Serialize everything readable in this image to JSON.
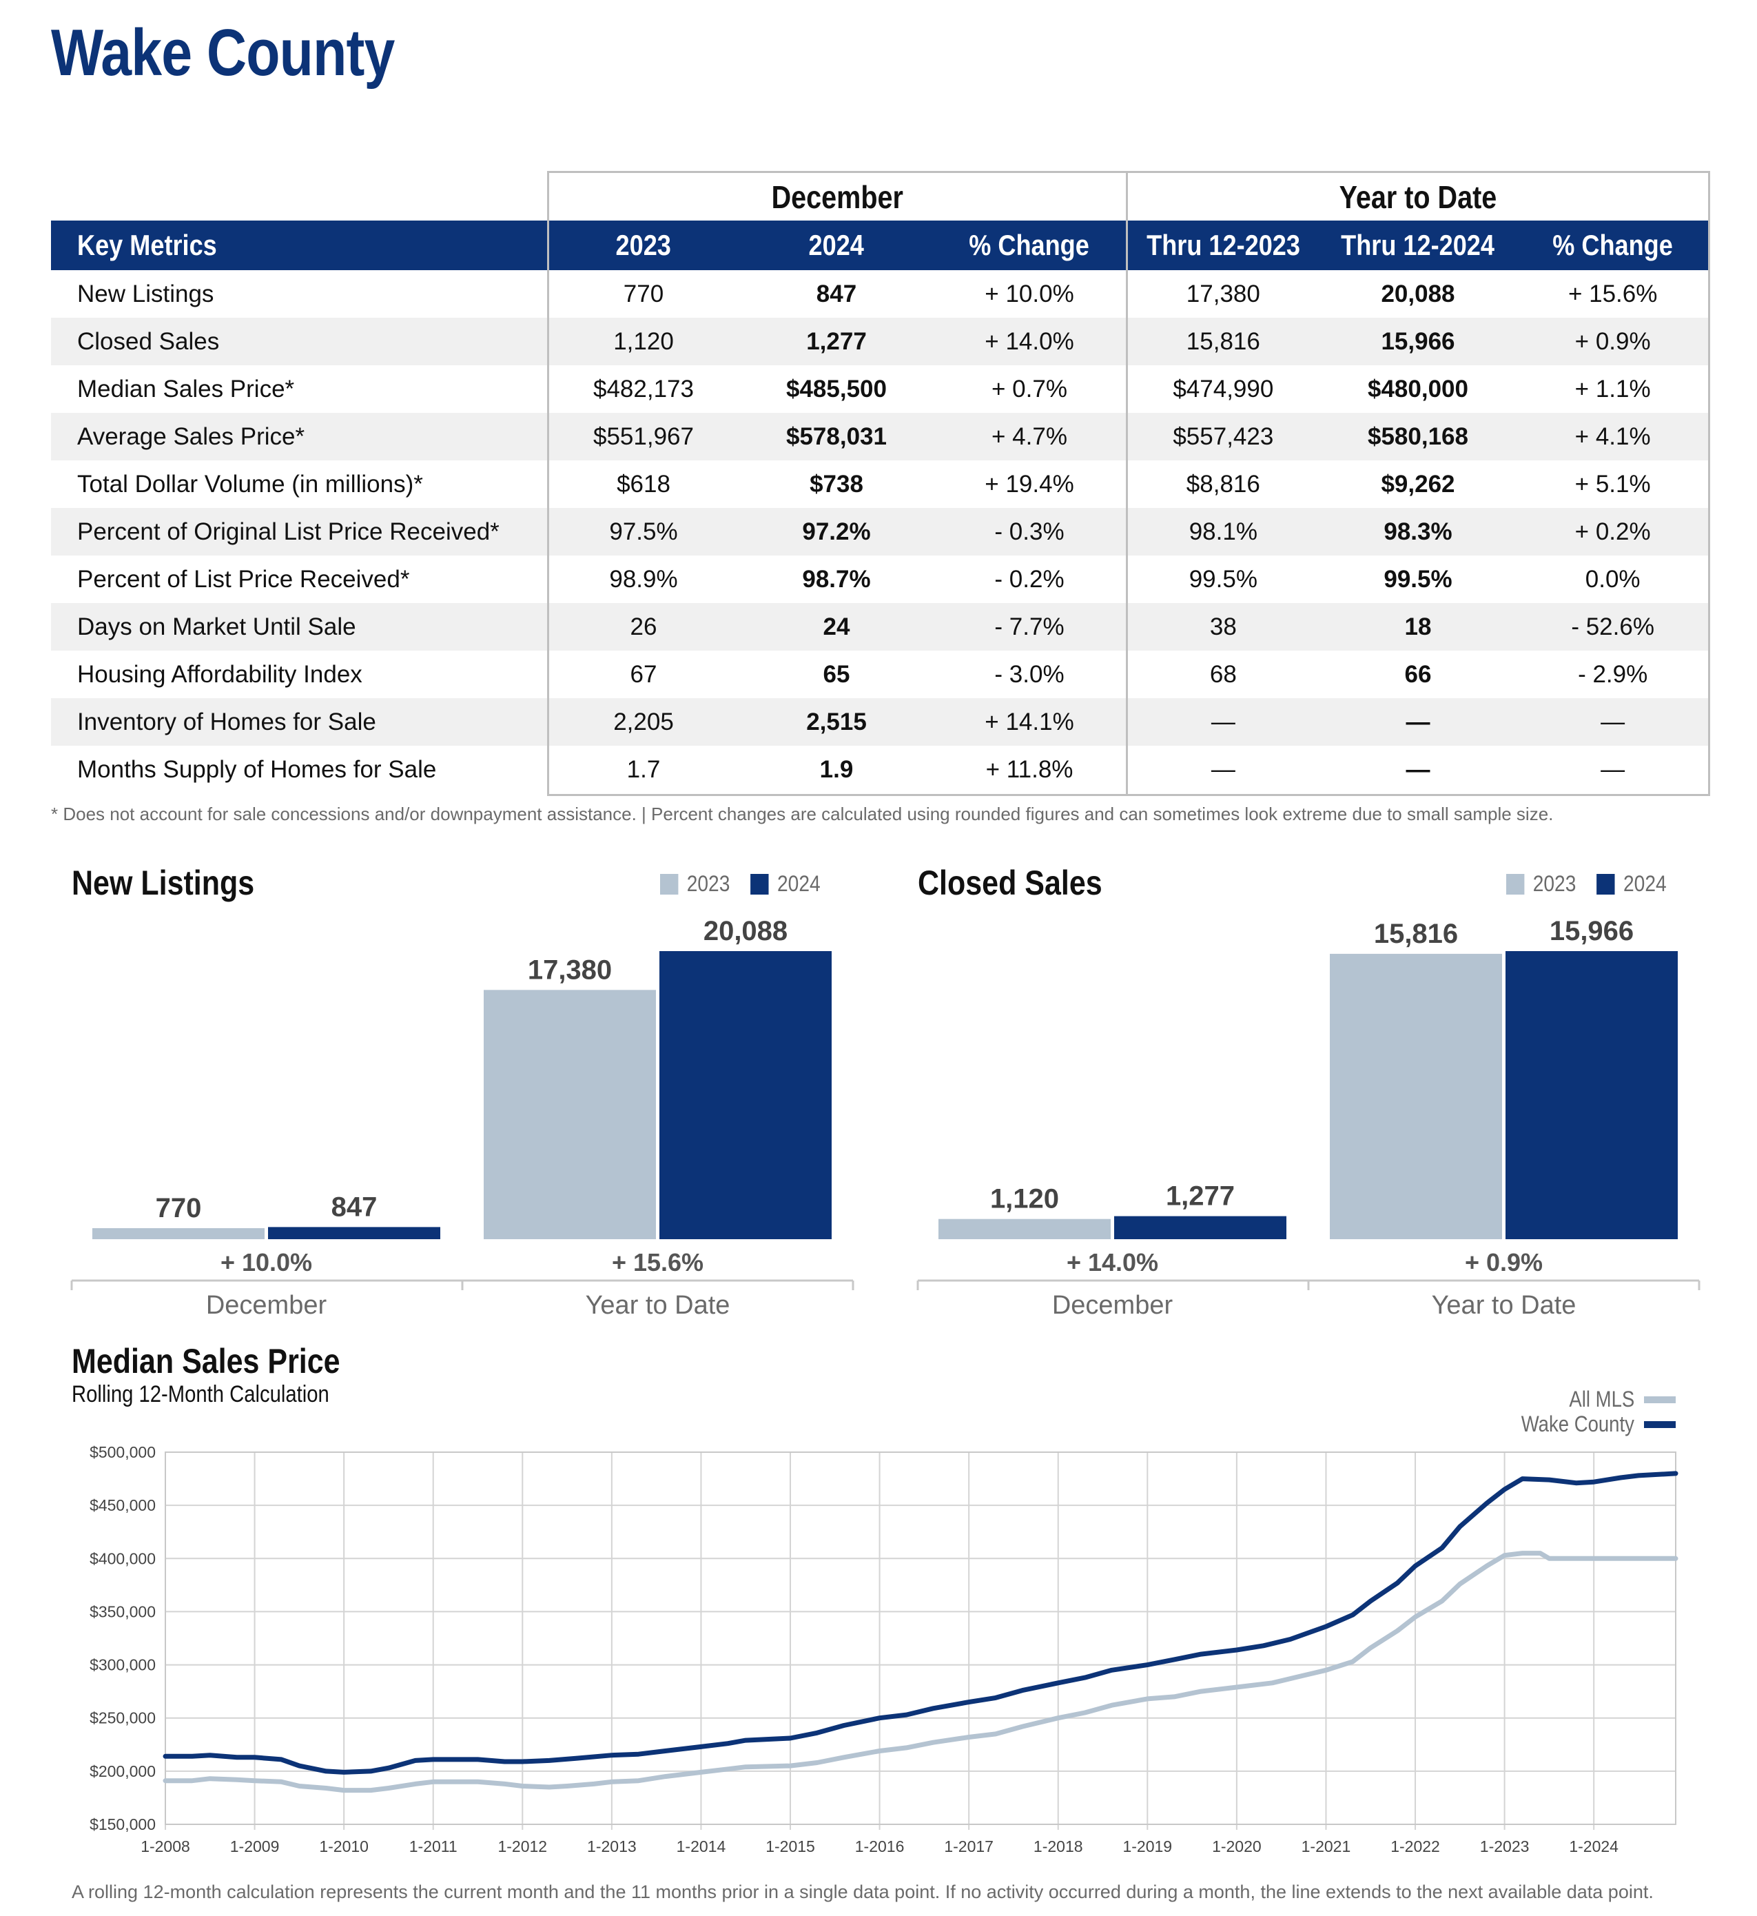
{
  "page_title": "Wake County",
  "metrics_table": {
    "group_headers": [
      "December",
      "Year to Date"
    ],
    "columns": [
      "Key Metrics",
      "2023",
      "2024",
      "% Change",
      "Thru 12-2023",
      "Thru 12-2024",
      "% Change"
    ],
    "rows": [
      [
        "New Listings",
        "770",
        "847",
        "+ 10.0%",
        "17,380",
        "20,088",
        "+ 15.6%"
      ],
      [
        "Closed Sales",
        "1,120",
        "1,277",
        "+ 14.0%",
        "15,816",
        "15,966",
        "+ 0.9%"
      ],
      [
        "Median Sales Price*",
        "$482,173",
        "$485,500",
        "+ 0.7%",
        "$474,990",
        "$480,000",
        "+ 1.1%"
      ],
      [
        "Average Sales Price*",
        "$551,967",
        "$578,031",
        "+ 4.7%",
        "$557,423",
        "$580,168",
        "+ 4.1%"
      ],
      [
        "Total Dollar Volume (in millions)*",
        "$618",
        "$738",
        "+ 19.4%",
        "$8,816",
        "$9,262",
        "+ 5.1%"
      ],
      [
        "Percent of Original List Price Received*",
        "97.5%",
        "97.2%",
        "- 0.3%",
        "98.1%",
        "98.3%",
        "+ 0.2%"
      ],
      [
        "Percent of List Price Received*",
        "98.9%",
        "98.7%",
        "- 0.2%",
        "99.5%",
        "99.5%",
        "0.0%"
      ],
      [
        "Days on Market Until Sale",
        "26",
        "24",
        "- 7.7%",
        "38",
        "18",
        "- 52.6%"
      ],
      [
        "Housing Affordability Index",
        "67",
        "65",
        "- 3.0%",
        "68",
        "66",
        "- 2.9%"
      ],
      [
        "Inventory of Homes for Sale",
        "2,205",
        "2,515",
        "+ 14.1%",
        "—",
        "—",
        "—"
      ],
      [
        "Months Supply of Homes for Sale",
        "1.7",
        "1.9",
        "+ 11.8%",
        "—",
        "—",
        "—"
      ]
    ]
  },
  "footnote": "* Does not account for sale concessions and/or downpayment assistance. | Percent changes are calculated using rounded figures and can sometimes look extreme due to small sample size.",
  "colors": {
    "navy": "#0c3377",
    "gray": "#b4c3d1",
    "axis": "#c8c8c8"
  },
  "chart_data": [
    {
      "type": "bar",
      "title": "New Listings",
      "legend": [
        "2023",
        "2024"
      ],
      "ymax": 20088,
      "groups": [
        {
          "label": "December",
          "values": [
            770,
            847
          ],
          "value_labels": [
            "770",
            "847"
          ],
          "change": "+ 10.0%"
        },
        {
          "label": "Year to Date",
          "values": [
            17380,
            20088
          ],
          "value_labels": [
            "17,380",
            "20,088"
          ],
          "change": "+ 15.6%"
        }
      ]
    },
    {
      "type": "bar",
      "title": "Closed Sales",
      "legend": [
        "2023",
        "2024"
      ],
      "ymax": 15966,
      "groups": [
        {
          "label": "December",
          "values": [
            1120,
            1277
          ],
          "value_labels": [
            "1,120",
            "1,277"
          ],
          "change": "+ 14.0%"
        },
        {
          "label": "Year to Date",
          "values": [
            15816,
            15966
          ],
          "value_labels": [
            "15,816",
            "15,966"
          ],
          "change": "+ 0.9%"
        }
      ]
    },
    {
      "type": "line",
      "title": "Median Sales Price",
      "subtitle": "Rolling 12-Month Calculation",
      "ylim": [
        150000,
        500000
      ],
      "yticks": [
        150000,
        200000,
        250000,
        300000,
        350000,
        400000,
        450000,
        500000
      ],
      "ytick_labels": [
        "$150,000",
        "$200,000",
        "$250,000",
        "$300,000",
        "$350,000",
        "$400,000",
        "$450,000",
        "$500,000"
      ],
      "xlim": [
        2008.0,
        2024.917
      ],
      "xticks": [
        2008,
        2009,
        2010,
        2011,
        2012,
        2013,
        2014,
        2015,
        2016,
        2017,
        2018,
        2019,
        2020,
        2021,
        2022,
        2023,
        2024
      ],
      "xtick_labels": [
        "1-2008",
        "1-2009",
        "1-2010",
        "1-2011",
        "1-2012",
        "1-2013",
        "1-2014",
        "1-2015",
        "1-2016",
        "1-2017",
        "1-2018",
        "1-2019",
        "1-2020",
        "1-2021",
        "1-2022",
        "1-2023",
        "1-2024"
      ],
      "series": [
        {
          "name": "All MLS",
          "color": "#b4c3d1",
          "points": [
            [
              2008.0,
              191000
            ],
            [
              2008.3,
              191000
            ],
            [
              2008.5,
              193000
            ],
            [
              2008.8,
              192000
            ],
            [
              2009.0,
              191000
            ],
            [
              2009.3,
              190000
            ],
            [
              2009.5,
              186000
            ],
            [
              2009.8,
              184000
            ],
            [
              2010.0,
              182000
            ],
            [
              2010.3,
              182000
            ],
            [
              2010.5,
              184000
            ],
            [
              2010.8,
              188000
            ],
            [
              2011.0,
              190000
            ],
            [
              2011.5,
              190000
            ],
            [
              2011.8,
              188000
            ],
            [
              2012.0,
              186000
            ],
            [
              2012.3,
              185000
            ],
            [
              2012.5,
              186000
            ],
            [
              2012.8,
              188000
            ],
            [
              2013.0,
              190000
            ],
            [
              2013.3,
              191000
            ],
            [
              2013.6,
              195000
            ],
            [
              2014.0,
              199000
            ],
            [
              2014.3,
              202000
            ],
            [
              2014.5,
              204000
            ],
            [
              2015.0,
              205000
            ],
            [
              2015.3,
              208000
            ],
            [
              2015.6,
              213000
            ],
            [
              2016.0,
              219000
            ],
            [
              2016.3,
              222000
            ],
            [
              2016.6,
              227000
            ],
            [
              2017.0,
              232000
            ],
            [
              2017.3,
              235000
            ],
            [
              2017.6,
              242000
            ],
            [
              2018.0,
              250000
            ],
            [
              2018.3,
              255000
            ],
            [
              2018.6,
              262000
            ],
            [
              2019.0,
              268000
            ],
            [
              2019.3,
              270000
            ],
            [
              2019.6,
              275000
            ],
            [
              2020.0,
              279000
            ],
            [
              2020.4,
              283000
            ],
            [
              2020.7,
              289000
            ],
            [
              2021.0,
              295000
            ],
            [
              2021.3,
              303000
            ],
            [
              2021.5,
              316000
            ],
            [
              2021.8,
              332000
            ],
            [
              2022.0,
              345000
            ],
            [
              2022.3,
              360000
            ],
            [
              2022.5,
              376000
            ],
            [
              2022.8,
              393000
            ],
            [
              2023.0,
              403000
            ],
            [
              2023.2,
              405000
            ],
            [
              2023.4,
              405000
            ],
            [
              2023.5,
              400000
            ],
            [
              2024.0,
              400000
            ],
            [
              2024.917,
              400000
            ]
          ]
        },
        {
          "name": "Wake County",
          "color": "#0c3377",
          "points": [
            [
              2008.0,
              214000
            ],
            [
              2008.3,
              214000
            ],
            [
              2008.5,
              215000
            ],
            [
              2008.8,
              213000
            ],
            [
              2009.0,
              213000
            ],
            [
              2009.3,
              211000
            ],
            [
              2009.5,
              205000
            ],
            [
              2009.8,
              200000
            ],
            [
              2010.0,
              199000
            ],
            [
              2010.3,
              200000
            ],
            [
              2010.5,
              203000
            ],
            [
              2010.8,
              210000
            ],
            [
              2011.0,
              211000
            ],
            [
              2011.5,
              211000
            ],
            [
              2011.8,
              209000
            ],
            [
              2012.0,
              209000
            ],
            [
              2012.3,
              210000
            ],
            [
              2012.6,
              212000
            ],
            [
              2013.0,
              215000
            ],
            [
              2013.3,
              216000
            ],
            [
              2013.6,
              219000
            ],
            [
              2014.0,
              223000
            ],
            [
              2014.3,
              226000
            ],
            [
              2014.5,
              229000
            ],
            [
              2015.0,
              231000
            ],
            [
              2015.3,
              236000
            ],
            [
              2015.6,
              243000
            ],
            [
              2016.0,
              250000
            ],
            [
              2016.3,
              253000
            ],
            [
              2016.6,
              259000
            ],
            [
              2017.0,
              265000
            ],
            [
              2017.3,
              269000
            ],
            [
              2017.6,
              276000
            ],
            [
              2018.0,
              283000
            ],
            [
              2018.3,
              288000
            ],
            [
              2018.6,
              295000
            ],
            [
              2019.0,
              300000
            ],
            [
              2019.3,
              305000
            ],
            [
              2019.6,
              310000
            ],
            [
              2020.0,
              314000
            ],
            [
              2020.3,
              318000
            ],
            [
              2020.6,
              324000
            ],
            [
              2021.0,
              336000
            ],
            [
              2021.3,
              347000
            ],
            [
              2021.5,
              360000
            ],
            [
              2021.8,
              377000
            ],
            [
              2022.0,
              393000
            ],
            [
              2022.3,
              410000
            ],
            [
              2022.5,
              430000
            ],
            [
              2022.8,
              452000
            ],
            [
              2023.0,
              465000
            ],
            [
              2023.2,
              475000
            ],
            [
              2023.5,
              474000
            ],
            [
              2023.8,
              471000
            ],
            [
              2024.0,
              472000
            ],
            [
              2024.3,
              476000
            ],
            [
              2024.5,
              478000
            ],
            [
              2024.917,
              480000
            ]
          ]
        }
      ]
    }
  ],
  "line_chart_note": "A rolling 12-month calculation represents the current month and the 11 months prior in a single data point. If no activity occurred during a month, the line extends to the next available data point."
}
